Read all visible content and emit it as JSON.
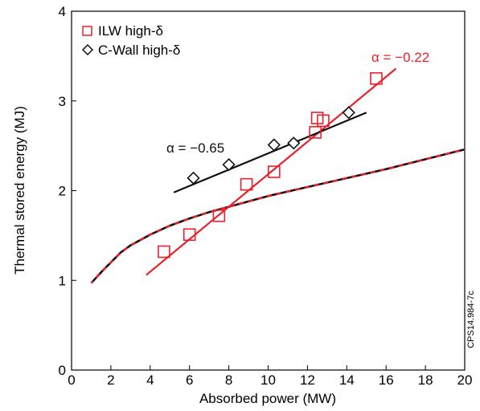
{
  "chart_data": {
    "type": "scatter",
    "xlabel": "Absorbed power (MW)",
    "ylabel": "Thermal stored energy (MJ)",
    "xlim": [
      0,
      20
    ],
    "ylim": [
      0,
      4
    ],
    "x_ticks": [
      0,
      2,
      4,
      6,
      8,
      10,
      12,
      14,
      16,
      18,
      20
    ],
    "y_ticks": [
      0,
      1,
      2,
      3,
      4
    ],
    "grid": false,
    "legend_position": "top-left",
    "colors": {
      "ilw": "#e8202a",
      "cwall": "#111111",
      "curve_red": "#e8202a",
      "curve_black": "#111111"
    },
    "series": [
      {
        "name": "ILW high-δ",
        "marker": "square",
        "color": "#e8202a",
        "points": [
          [
            4.7,
            1.32
          ],
          [
            6.0,
            1.51
          ],
          [
            7.5,
            1.72
          ],
          [
            8.9,
            2.07
          ],
          [
            10.3,
            2.21
          ],
          [
            12.4,
            2.65
          ],
          [
            12.5,
            2.81
          ],
          [
            12.8,
            2.78
          ],
          [
            15.5,
            3.25
          ]
        ]
      },
      {
        "name": "C-Wall high-δ",
        "marker": "diamond",
        "color": "#111111",
        "points": [
          [
            6.2,
            2.14
          ],
          [
            8.0,
            2.29
          ],
          [
            10.3,
            2.51
          ],
          [
            11.3,
            2.53
          ],
          [
            14.1,
            2.87
          ]
        ]
      }
    ],
    "fit_lines": [
      {
        "label": "α = −0.22",
        "color": "#e8202a",
        "points": [
          [
            3.8,
            1.06
          ],
          [
            16.5,
            3.36
          ]
        ]
      },
      {
        "label": "α = −0.65",
        "color": "#111111",
        "points": [
          [
            5.2,
            1.98
          ],
          [
            15.0,
            2.87
          ]
        ]
      }
    ],
    "scaling_curve": {
      "style": "black and red dashed",
      "points": [
        [
          1.0,
          0.97
        ],
        [
          1.5,
          1.09
        ],
        [
          2.0,
          1.2
        ],
        [
          2.5,
          1.31
        ],
        [
          3.0,
          1.39
        ],
        [
          4.0,
          1.51
        ],
        [
          5.0,
          1.61
        ],
        [
          6.0,
          1.69
        ],
        [
          7.0,
          1.76
        ],
        [
          8.0,
          1.82
        ],
        [
          9.0,
          1.88
        ],
        [
          10.0,
          1.94
        ],
        [
          12.0,
          2.04
        ],
        [
          14.0,
          2.14
        ],
        [
          16.0,
          2.24
        ],
        [
          18.0,
          2.35
        ],
        [
          20.0,
          2.46
        ]
      ]
    },
    "annotations": [
      {
        "text": "α = −0.22",
        "color": "#e8202a",
        "x": 14.8,
        "y": 3.48
      },
      {
        "text": "α = −0.65",
        "color": "#111111",
        "x": 6.1,
        "y": 2.45
      }
    ],
    "figure_id": "CPS14.984-7c"
  }
}
